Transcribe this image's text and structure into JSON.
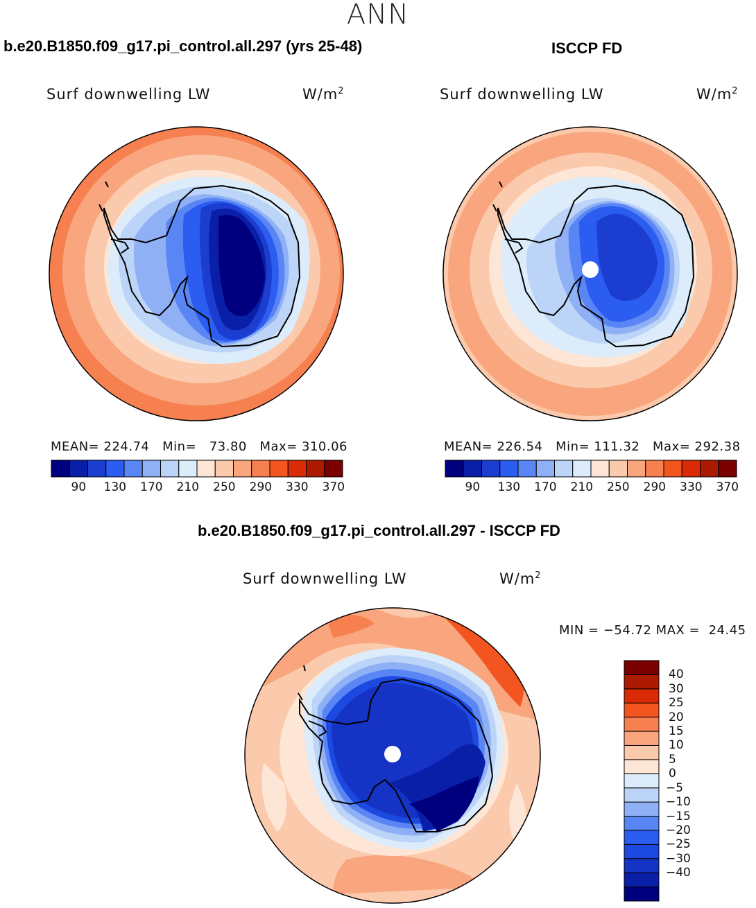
{
  "figure": {
    "title": "ANN"
  },
  "panels": [
    {
      "heading": "b.e20.B1850.f09_g17.pi_control.all.297 (yrs 25-48)",
      "variable": "Surf downwelling LW",
      "units_base": "W/m",
      "units_exp": "2",
      "stats": "MEAN= 224.74   Min=   73.80   Max= 310.06",
      "mean": 224.74,
      "min": 73.8,
      "max": 310.06,
      "pole_hole": false
    },
    {
      "heading": "ISCCP FD",
      "variable": "Surf downwelling LW",
      "units_base": "W/m",
      "units_exp": "2",
      "stats": "MEAN= 226.54   Min= 111.32   Max= 292.38",
      "mean": 226.54,
      "min": 111.32,
      "max": 292.38,
      "pole_hole": true
    }
  ],
  "difference_panel": {
    "heading": "b.e20.B1850.f09_g17.pi_control.all.297 - ISCCP FD",
    "variable": "Surf downwelling LW",
    "units_base": "W/m",
    "units_exp": "2",
    "stats": "MIN = −54.72 MAX =  24.45",
    "min": -54.72,
    "max": 24.45,
    "pole_hole": true
  },
  "colorbar_abs": {
    "colors": [
      "#00007f",
      "#0a1fa8",
      "#1c3ed0",
      "#2a5df0",
      "#5a86f5",
      "#8fb0f5",
      "#bcd4f7",
      "#dcecfb",
      "#fde6d6",
      "#fbc9ab",
      "#f9a57e",
      "#f6804f",
      "#f25520",
      "#d92c06",
      "#ac1a02",
      "#7b0000"
    ],
    "tick_labels": [
      "90",
      "130",
      "170",
      "210",
      "250",
      "290",
      "330",
      "370"
    ]
  },
  "colorbar_diff": {
    "colors": [
      "#00007f",
      "#0a1fa8",
      "#1533c4",
      "#1c49e0",
      "#2a5df0",
      "#5a86f5",
      "#8fb0f5",
      "#bcd4f7",
      "#dcecfb",
      "#fde6d6",
      "#fbc9ab",
      "#f9a57e",
      "#f6804f",
      "#f25520",
      "#d92c06",
      "#ac1a02",
      "#7b0000"
    ],
    "tick_labels": [
      "40",
      "30",
      "25",
      "20",
      "15",
      "10",
      "5",
      "0",
      "−5",
      "−10",
      "−15",
      "−20",
      "−25",
      "−30",
      "−40"
    ]
  }
}
